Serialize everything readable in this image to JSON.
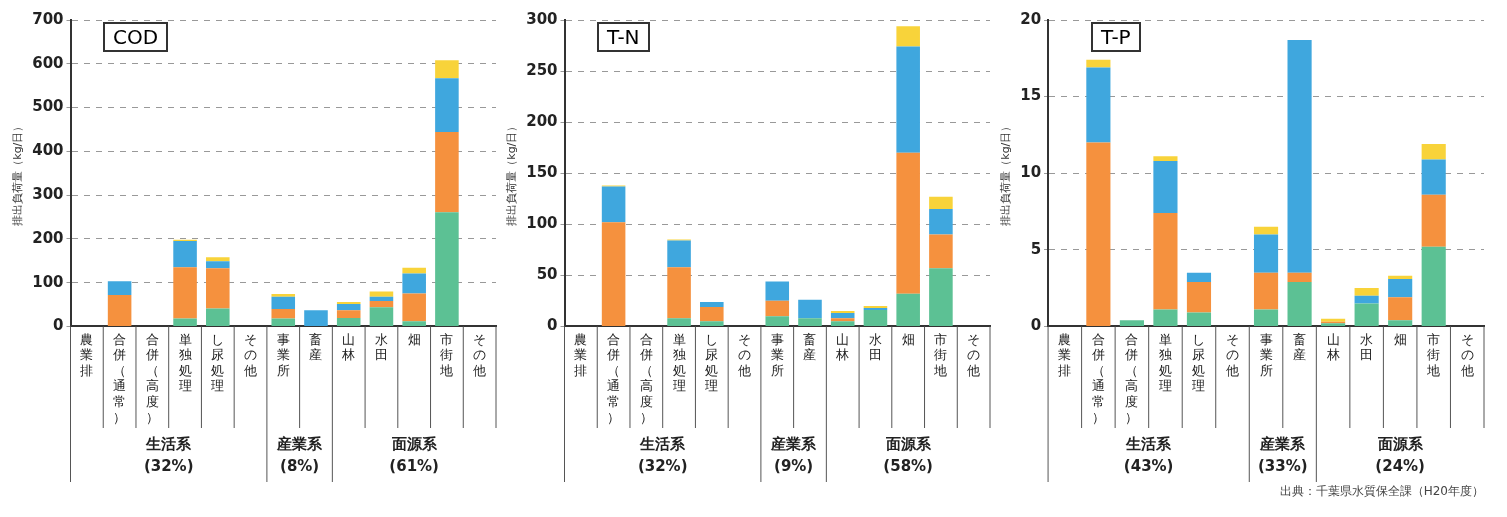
{
  "chart_data": [
    {
      "type": "bar",
      "title": "COD",
      "ylabel": "排出負荷量（kg/日）",
      "stacked": true,
      "grid": "y",
      "legend": false,
      "categories": [
        "農業排",
        "合併（通常）",
        "合併（高度）",
        "単独処理",
        "し尿処理",
        "その他",
        "事業所",
        "畜産",
        "山林",
        "水田",
        "畑",
        "市街地",
        "その他"
      ],
      "ylim": [
        0,
        700
      ],
      "yticks": [
        0,
        100,
        200,
        300,
        400,
        500,
        600,
        700
      ],
      "series": [
        {
          "color": "#5cc194",
          "values": [
            0,
            0,
            0,
            18,
            41,
            0,
            18,
            null,
            19,
            44,
            12,
            261,
            0
          ]
        },
        {
          "color": "#f5913e",
          "values": [
            0,
            72,
            0,
            117,
            92,
            0,
            22,
            0,
            18,
            14,
            63,
            183,
            0
          ]
        },
        {
          "color": "#3fa7de",
          "values": [
            0,
            31,
            0,
            60,
            16,
            0,
            28,
            37,
            14,
            10,
            46,
            123,
            0
          ]
        },
        {
          "color": "#f8d33a",
          "values": [
            0,
            0,
            0,
            3,
            9,
            0,
            6,
            0,
            5,
            12,
            13,
            41,
            0
          ]
        }
      ],
      "annotations": [
        "生活系 (32%)",
        "産業系 (8%)",
        "面源系 (61%)"
      ]
    },
    {
      "type": "bar",
      "title": "T-N",
      "ylabel": "排出負荷量（kg/日）",
      "stacked": true,
      "grid": "y",
      "legend": false,
      "categories": [
        "農業排",
        "合併（通常）",
        "合併（高度）",
        "単独処理",
        "し尿処理",
        "その他",
        "事業所",
        "畜産",
        "山林",
        "水田",
        "畑",
        "市街地",
        "その他"
      ],
      "ylim": [
        0,
        300
      ],
      "yticks": [
        0,
        50,
        100,
        150,
        200,
        250,
        300
      ],
      "series": [
        {
          "color": "#5cc194",
          "values": [
            0,
            0,
            0,
            8,
            5,
            0,
            10,
            8,
            5,
            16,
            32,
            57,
            0
          ]
        },
        {
          "color": "#f5913e",
          "values": [
            0,
            102,
            0,
            50,
            14,
            0,
            15,
            0,
            3,
            0,
            138,
            33,
            0
          ]
        },
        {
          "color": "#3fa7de",
          "values": [
            0,
            35,
            0,
            26,
            5,
            0,
            19,
            18,
            5,
            2,
            104,
            25,
            0
          ]
        },
        {
          "color": "#f8d33a",
          "values": [
            0,
            1,
            0,
            1,
            0,
            0,
            0,
            0,
            2,
            2,
            20,
            12,
            0
          ]
        }
      ],
      "annotations": [
        "生活系 (32%)",
        "産業系 (9%)",
        "面源系 (58%)"
      ]
    },
    {
      "type": "bar",
      "title": "T-P",
      "ylabel": "排出負荷量（kg/日）",
      "stacked": true,
      "grid": "y",
      "legend": false,
      "categories": [
        "農業排",
        "合併（通常）",
        "合併（高度）",
        "単独処理",
        "し尿処理",
        "その他",
        "事業所",
        "畜産",
        "山林",
        "水田",
        "畑",
        "市街地",
        "その他"
      ],
      "ylim": [
        0,
        20
      ],
      "yticks": [
        0,
        5,
        10,
        15,
        20
      ],
      "series": [
        {
          "color": "#5cc194",
          "values": [
            0,
            0,
            0.4,
            1.1,
            0.9,
            0,
            1.1,
            2.9,
            0.2,
            1.5,
            0.4,
            5.2,
            0
          ]
        },
        {
          "color": "#f5913e",
          "values": [
            0,
            12,
            0,
            6.3,
            2,
            0,
            2.4,
            0.6,
            0.1,
            0,
            1.5,
            3.4,
            0
          ]
        },
        {
          "color": "#3fa7de",
          "values": [
            0,
            4.9,
            0,
            3.4,
            0.6,
            0,
            2.5,
            15.2,
            0,
            0.5,
            1.2,
            2.3,
            0
          ]
        },
        {
          "color": "#f8d33a",
          "values": [
            0,
            0.5,
            0,
            0.3,
            0,
            0,
            0.5,
            0,
            0.2,
            0.5,
            0.2,
            1,
            0
          ]
        }
      ],
      "annotations": [
        "生活系 (43%)",
        "産業系 (33%)",
        "面源系 (24%)",
        "出典：千葉県水質保全課（H20年度）"
      ]
    }
  ]
}
